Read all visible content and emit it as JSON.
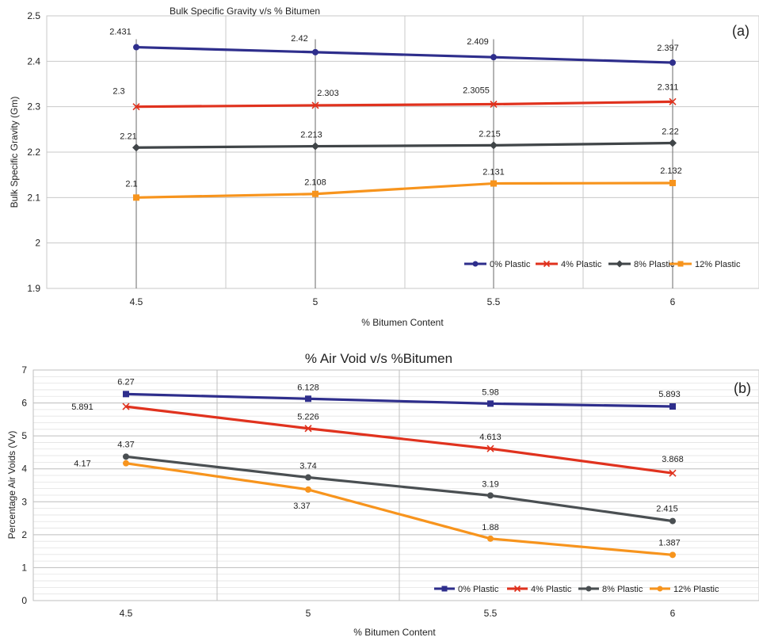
{
  "chart_data": [
    {
      "panel_label": "(a)",
      "type": "line",
      "title": "Bulk Specific Gravity v/s % Bitumen",
      "xlabel": "% Bitumen Content",
      "ylabel": "Bulk Specific Gravity (Gm)",
      "categories": [
        "4.5",
        "5",
        "5.5",
        "6"
      ],
      "ylim": [
        1.9,
        2.5
      ],
      "yticks": [
        "1.9",
        "2",
        "2.1",
        "2.2",
        "2.3",
        "2.4",
        "2.5"
      ],
      "grid": true,
      "legend_position": "bottom-right",
      "series": [
        {
          "name": "0% Plastic",
          "color": "#2E2E8C",
          "marker": "circle",
          "values": [
            2.431,
            2.42,
            2.409,
            2.397
          ],
          "labels": [
            "2.431",
            "2.42",
            "2.409",
            "2.397"
          ]
        },
        {
          "name": "4% Plastic",
          "color": "#E0321E",
          "marker": "x",
          "values": [
            2.3,
            2.303,
            2.3055,
            2.311
          ],
          "labels": [
            "2.3",
            "2.303",
            "2.3055",
            "2.311"
          ]
        },
        {
          "name": "8% Plastic",
          "color": "#404548",
          "marker": "diamond",
          "values": [
            2.21,
            2.213,
            2.215,
            2.22
          ],
          "labels": [
            "2.21",
            "2.213",
            "2.215",
            "2.22"
          ]
        },
        {
          "name": "12% Plastic",
          "color": "#F7941D",
          "marker": "square",
          "values": [
            2.1,
            2.108,
            2.131,
            2.132
          ],
          "labels": [
            "2.1",
            "2.108",
            "2.131",
            "2.132"
          ]
        }
      ]
    },
    {
      "panel_label": "(b)",
      "type": "line",
      "title": "% Air Void v/s %Bitumen",
      "xlabel": "% Bitumen Content",
      "ylabel": "Percentage Air Voids (Vv)",
      "categories": [
        "4.5",
        "5",
        "5.5",
        "6"
      ],
      "ylim": [
        0,
        7
      ],
      "yticks": [
        "0",
        "1",
        "2",
        "3",
        "4",
        "5",
        "6",
        "7"
      ],
      "grid": true,
      "legend_position": "bottom-right",
      "series": [
        {
          "name": "0% Plastic",
          "color": "#2E2E8C",
          "marker": "square",
          "values": [
            6.27,
            6.128,
            5.98,
            5.893
          ],
          "labels": [
            "6.27",
            "6.128",
            "5.98",
            "5.893"
          ]
        },
        {
          "name": "4% Plastic",
          "color": "#E0321E",
          "marker": "x",
          "values": [
            5.891,
            5.226,
            4.613,
            3.868
          ],
          "labels": [
            "5.891",
            "5.226",
            "4.613",
            "3.868"
          ]
        },
        {
          "name": "8% Plastic",
          "color": "#4A4F52",
          "marker": "circle",
          "values": [
            4.37,
            3.74,
            3.19,
            2.415
          ],
          "labels": [
            "4.37",
            "3.74",
            "3.19",
            "2.415"
          ]
        },
        {
          "name": "12% Plastic",
          "color": "#F7941D",
          "marker": "circle",
          "values": [
            4.17,
            3.37,
            1.88,
            1.387
          ],
          "labels": [
            "4.17",
            "3.37",
            "1.88",
            "1.387"
          ]
        }
      ]
    }
  ]
}
